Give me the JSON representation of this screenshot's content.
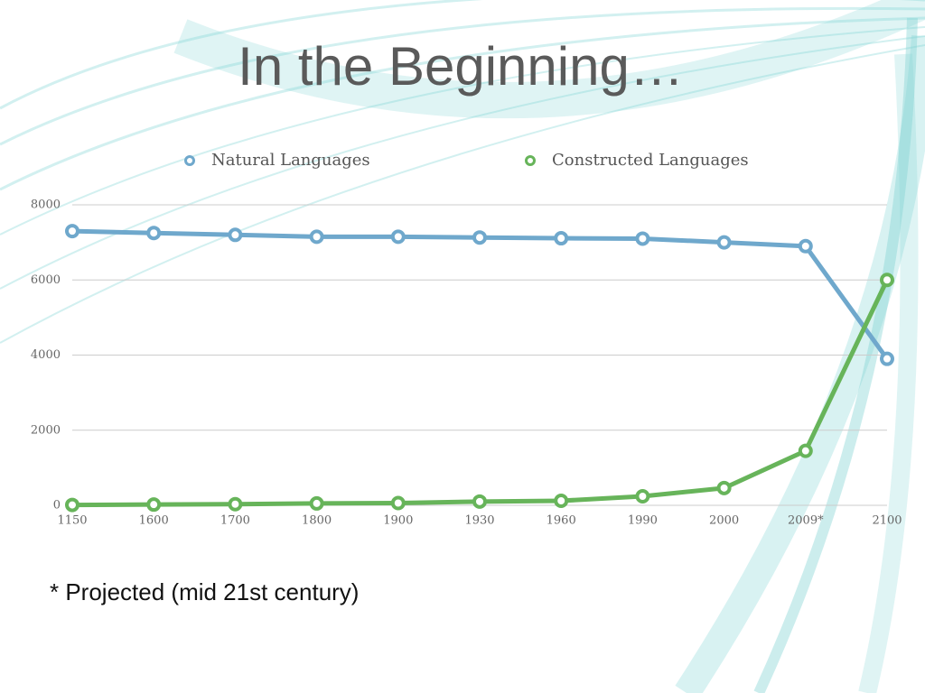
{
  "chart_data": {
    "type": "line",
    "title": "In the Beginning…",
    "categories": [
      "1150",
      "1600",
      "1700",
      "1800",
      "1900",
      "1930",
      "1960",
      "1990",
      "2000",
      "2009*",
      "2100"
    ],
    "series": [
      {
        "name": "Natural Languages",
        "color": "#6fa8cc",
        "values": [
          7300,
          7250,
          7200,
          7150,
          7150,
          7130,
          7110,
          7100,
          7000,
          6900,
          3900
        ]
      },
      {
        "name": "Constructed Languages",
        "color": "#67b45a",
        "values": [
          10,
          20,
          30,
          50,
          60,
          100,
          120,
          240,
          460,
          1450,
          6000
        ]
      }
    ],
    "ylim": [
      0,
      8000
    ],
    "yticks": [
      0,
      2000,
      4000,
      6000,
      8000
    ],
    "grid": true,
    "legend": "top",
    "footnote": "* Projected (mid 21st century)"
  }
}
